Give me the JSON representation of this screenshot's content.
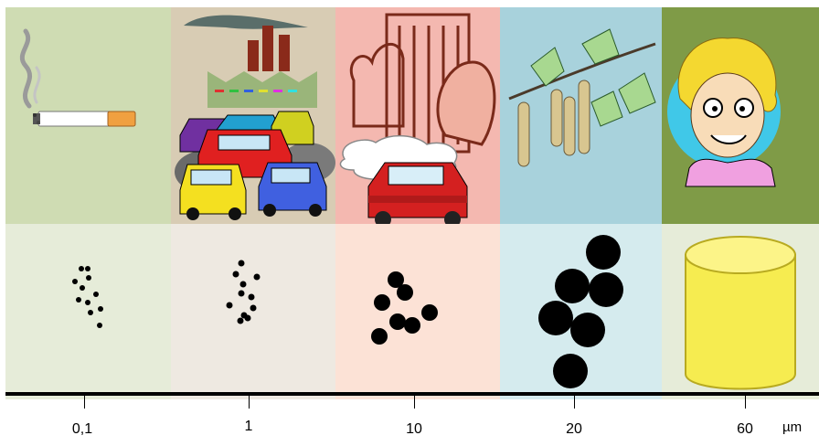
{
  "columns": [
    {
      "id": "smoke",
      "top_color": "#cfdcb3",
      "bottom_color": "#e6ecd9",
      "illustration": "cigarette-icon"
    },
    {
      "id": "traffic",
      "top_color": "#d8ccb4",
      "bottom_color": "#eee9e1",
      "illustration": "factory-traffic-icon"
    },
    {
      "id": "vehicle",
      "top_color": "#f4b8b0",
      "bottom_color": "#fce2d6",
      "illustration": "building-car-icon"
    },
    {
      "id": "pollen",
      "top_color": "#a8d2dc",
      "bottom_color": "#d5ebee",
      "illustration": "birch-catkin-icon"
    },
    {
      "id": "hair",
      "top_color": "#7f9b47",
      "bottom_color": "#e6ecd9",
      "illustration": "person-portrait-icon"
    }
  ],
  "scale": {
    "ticks": [
      "0,1",
      "1",
      "10",
      "20",
      "60"
    ],
    "unit": "µm"
  }
}
